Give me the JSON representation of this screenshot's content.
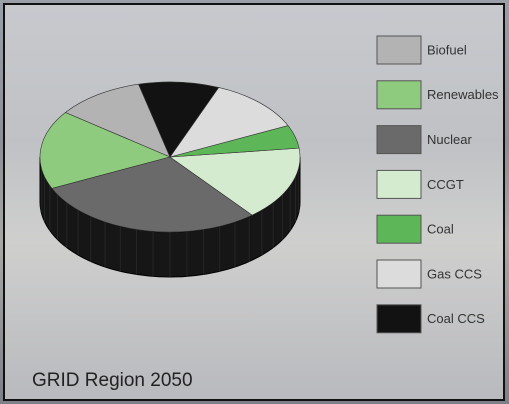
{
  "chart_data": {
    "type": "pie",
    "title": "GRID Region 2050",
    "categories": [
      "Biofuel",
      "Renewables",
      "Nuclear",
      "CCGT",
      "Coal",
      "Gas CCS",
      "Coal CCS"
    ],
    "values": [
      11,
      17,
      29,
      16,
      5,
      12,
      10
    ],
    "colors": [
      "#b3b3b3",
      "#8fcb7e",
      "#6a6a6a",
      "#d5ebd0",
      "#5db658",
      "#dcdcdc",
      "#121212"
    ]
  }
}
